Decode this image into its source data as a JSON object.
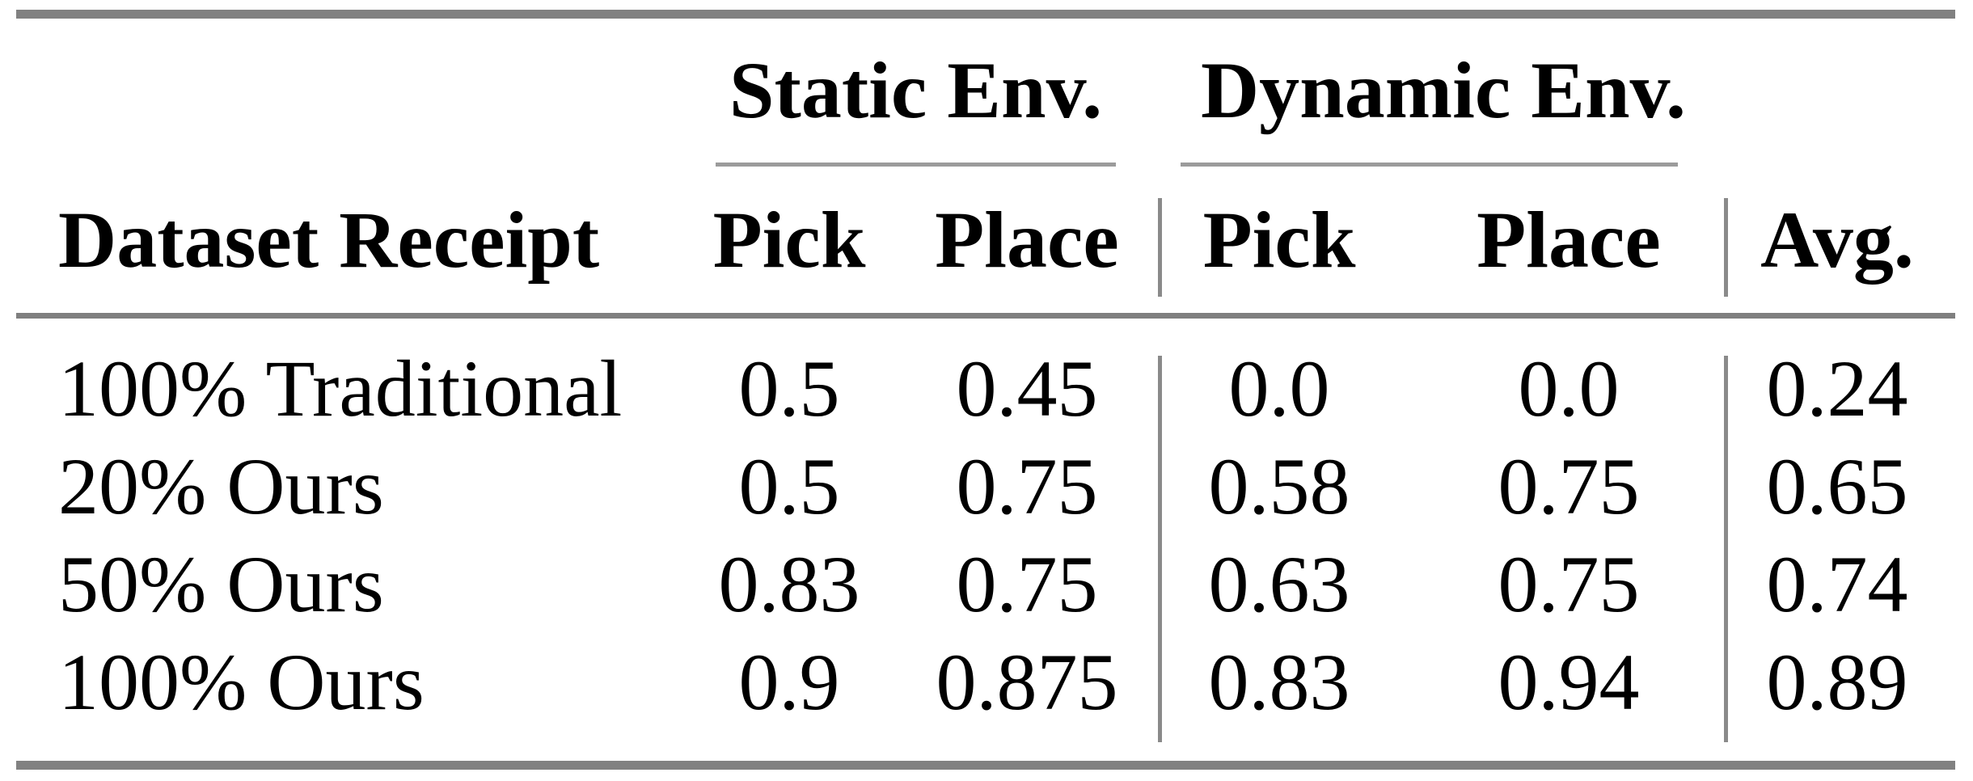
{
  "table": {
    "groups": [
      {
        "label": "Static Env."
      },
      {
        "label": "Dynamic Env."
      }
    ],
    "headers": {
      "dataset": "Dataset Receipt",
      "static_pick": "Pick",
      "static_place": "Place",
      "dynamic_pick": "Pick",
      "dynamic_place": "Place",
      "avg": "Avg."
    },
    "rows": [
      {
        "label": "100% Traditional",
        "values": [
          "0.5",
          "0.45",
          "0.0",
          "0.0",
          "0.24"
        ]
      },
      {
        "label": "20% Ours",
        "values": [
          "0.5",
          "0.75",
          "0.58",
          "0.75",
          "0.65"
        ]
      },
      {
        "label": "50% Ours",
        "values": [
          "0.83",
          "0.75",
          "0.63",
          "0.75",
          "0.74"
        ]
      },
      {
        "label": "100% Ours",
        "values": [
          "0.9",
          "0.875",
          "0.83",
          "0.94",
          "0.89"
        ]
      }
    ],
    "colors": {
      "text": "#000000",
      "background": "#ffffff",
      "thick_rule": "#818181",
      "mid_rule": "#7f7f7f",
      "cmid_rule": "#9b9b9b",
      "vertical_bar": "#8a8a8a"
    }
  },
  "chart_data": {
    "type": "table",
    "columns": [
      "Dataset Receipt",
      "Static Env. Pick",
      "Static Env. Place",
      "Dynamic Env. Pick",
      "Dynamic Env. Place",
      "Avg."
    ],
    "rows": [
      [
        "100% Traditional",
        0.5,
        0.45,
        0.0,
        0.0,
        0.24
      ],
      [
        "20% Ours",
        0.5,
        0.75,
        0.58,
        0.75,
        0.65
      ],
      [
        "50% Ours",
        0.83,
        0.75,
        0.63,
        0.75,
        0.74
      ],
      [
        "100% Ours",
        0.9,
        0.875,
        0.83,
        0.94,
        0.89
      ]
    ]
  }
}
